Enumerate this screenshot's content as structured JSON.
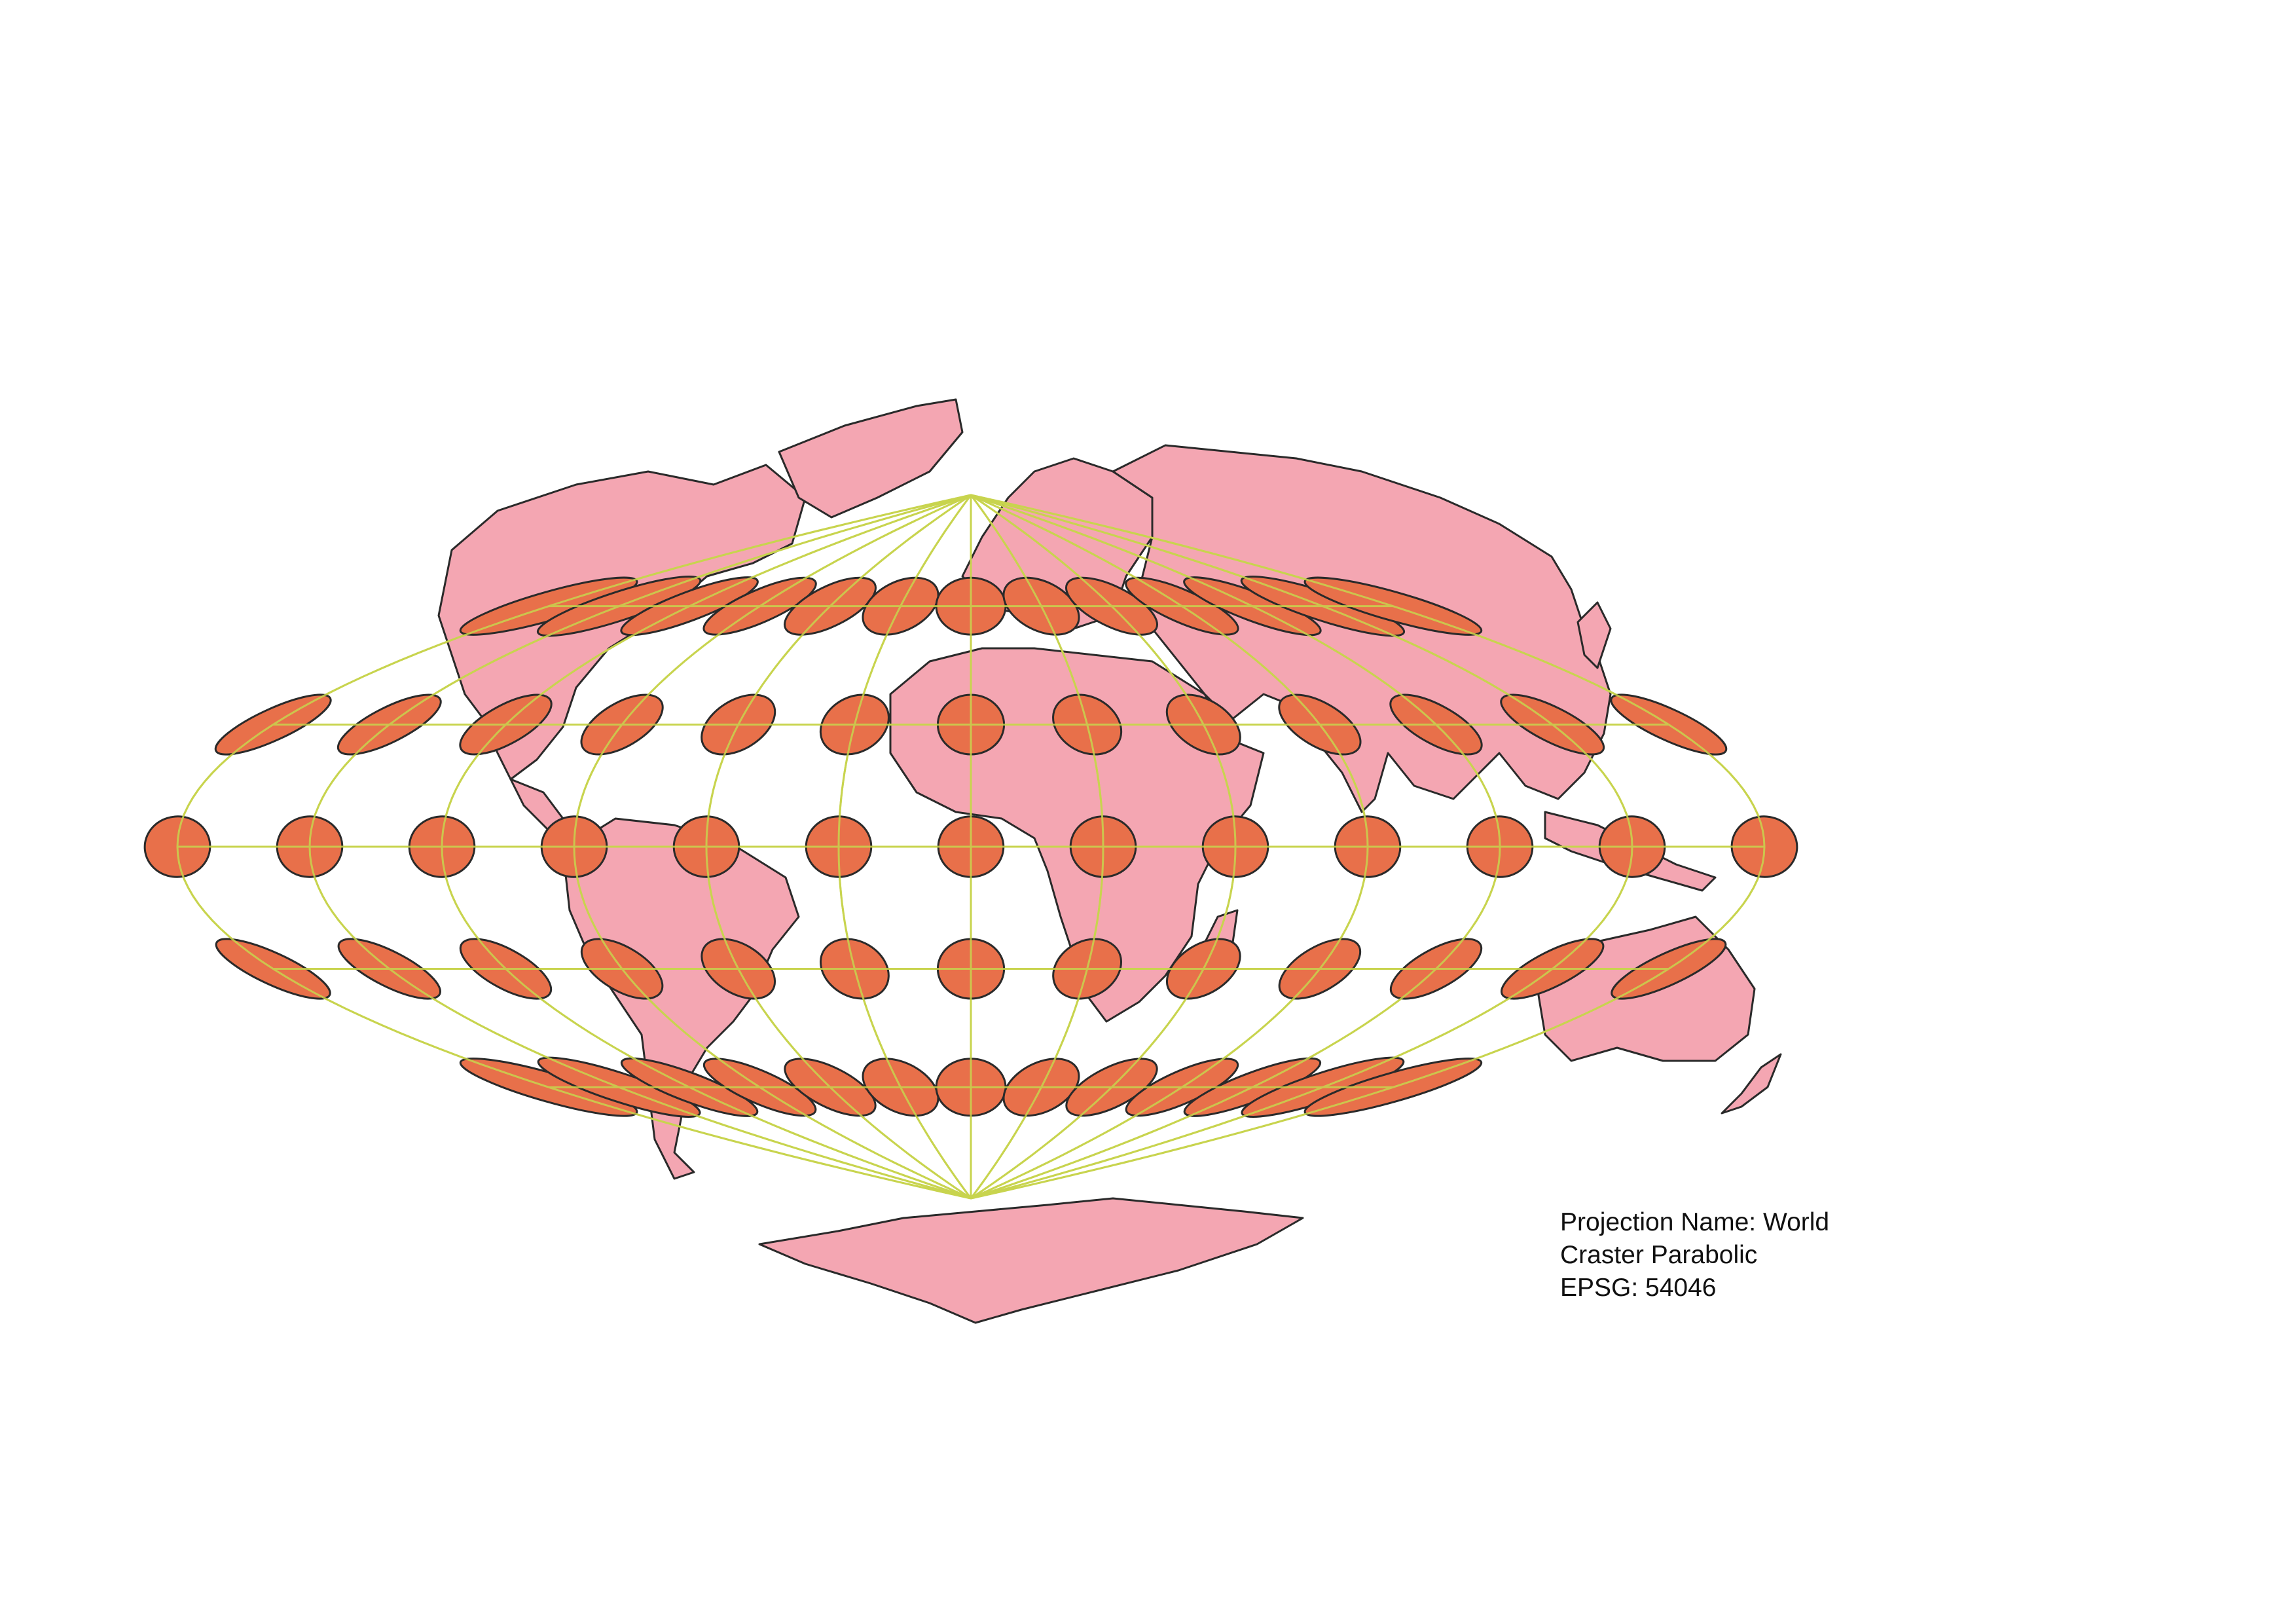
{
  "projection_label": {
    "line1": "Projection Name: World",
    "line2": "Craster Parabolic",
    "line3": "EPSG: 54046"
  },
  "colors": {
    "background": "#ffffff",
    "land_fill": "#f4a6b2",
    "land_stroke": "#2a2a2a",
    "ellipse_fill": "#e8704a",
    "ellipse_stroke": "#2a2a2a",
    "graticule": "#c8d44e",
    "text": "#111111"
  },
  "map": {
    "projection": "Craster Parabolic",
    "graticule_longitudes": [
      -180,
      -150,
      -120,
      -90,
      -60,
      -30,
      0,
      30,
      60,
      90,
      120,
      150,
      180
    ],
    "graticule_latitudes": [
      -60,
      -30,
      0,
      30,
      60
    ],
    "tissot_indicatrix": "ellipses at each graticule intersection"
  }
}
